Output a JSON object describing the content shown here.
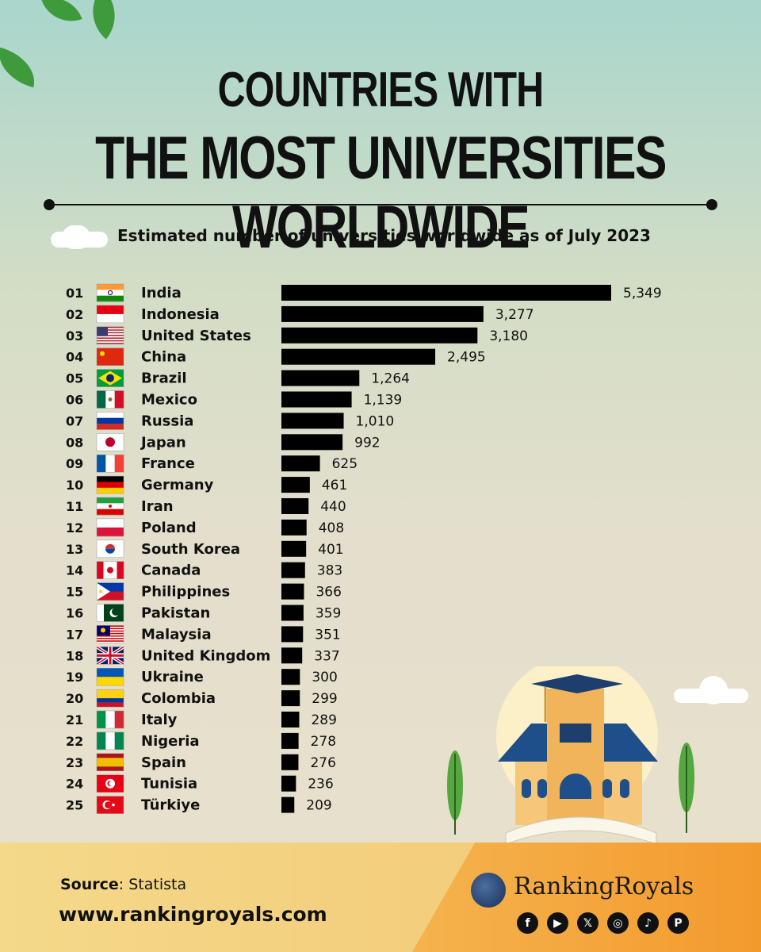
{
  "header": {
    "title_line1": "COUNTRIES WITH",
    "title_line2": "THE MOST UNIVERSITIES WORLDWIDE",
    "subtitle": "Estimated number of universities worldwide as of July 2023"
  },
  "chart_data": {
    "type": "bar",
    "orientation": "horizontal",
    "title": "COUNTRIES WITH THE MOST UNIVERSITIES WORLDWIDE",
    "subtitle": "Estimated number of universities worldwide as of July 2023",
    "ranks": [
      "01",
      "02",
      "03",
      "04",
      "05",
      "06",
      "07",
      "08",
      "09",
      "10",
      "11",
      "12",
      "13",
      "14",
      "15",
      "16",
      "17",
      "18",
      "19",
      "20",
      "21",
      "22",
      "23",
      "24",
      "25"
    ],
    "categories": [
      "India",
      "Indonesia",
      "United States",
      "China",
      "Brazil",
      "Mexico",
      "Russia",
      "Japan",
      "France",
      "Germany",
      "Iran",
      "Poland",
      "South Korea",
      "Canada",
      "Philippines",
      "Pakistan",
      "Malaysia",
      "United Kingdom",
      "Ukraine",
      "Colombia",
      "Italy",
      "Nigeria",
      "Spain",
      "Tunisia",
      "Türkiye"
    ],
    "values": [
      5349,
      3277,
      3180,
      2495,
      1264,
      1139,
      1010,
      992,
      625,
      461,
      440,
      408,
      401,
      383,
      366,
      359,
      351,
      337,
      300,
      299,
      289,
      278,
      276,
      236,
      209
    ],
    "value_labels": [
      "5,349",
      "3,277",
      "3,180",
      "2,495",
      "1,264",
      "1,139",
      "1,010",
      "992",
      "625",
      "461",
      "440",
      "408",
      "401",
      "383",
      "366",
      "359",
      "351",
      "337",
      "300",
      "299",
      "289",
      "278",
      "276",
      "236",
      "209"
    ],
    "bar_color": "#000000",
    "grid": false
  },
  "flags": [
    "flag-india",
    "flag-indonesia",
    "flag-united-states",
    "flag-china",
    "flag-brazil",
    "flag-mexico",
    "flag-russia",
    "flag-japan",
    "flag-france",
    "flag-germany",
    "flag-iran",
    "flag-poland",
    "flag-south-korea",
    "flag-canada",
    "flag-philippines",
    "flag-pakistan",
    "flag-malaysia",
    "flag-united-kingdom",
    "flag-ukraine",
    "flag-colombia",
    "flag-italy",
    "flag-nigeria",
    "flag-spain",
    "flag-tunisia",
    "flag-turkiye"
  ],
  "footer": {
    "source_label": "Source",
    "source_value": ": Statista",
    "website": "www.rankingroyals.com",
    "brand": "RankingRoyals",
    "social_icons": [
      "facebook-icon",
      "youtube-icon",
      "x-icon",
      "instagram-icon",
      "tiktok-icon",
      "pinterest-icon"
    ]
  }
}
